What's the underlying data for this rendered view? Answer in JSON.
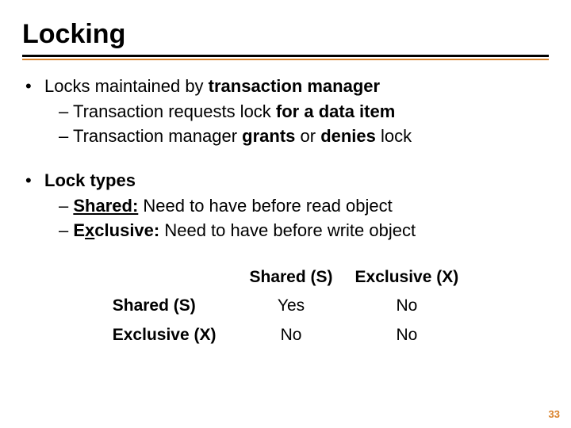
{
  "title": "Locking",
  "bullets": {
    "b1": {
      "lead": "Locks maintained by ",
      "strong": "transaction manager"
    },
    "b1s1": {
      "pre": "– Transaction requests lock ",
      "strong": "for a data item"
    },
    "b1s2": {
      "pre": "– Transaction manager ",
      "g": "grants",
      "mid": " or ",
      "d": "denies",
      "post": " lock"
    },
    "b2": {
      "strong": "Lock types"
    },
    "b2s1": {
      "dash": "– ",
      "u": "Shared:",
      "post": " Need to have before read object"
    },
    "b2s2": {
      "dash": "– ",
      "ulead": "E",
      "uletter": "x",
      "utail": "clusive:",
      "post": " Need to have before write object"
    }
  },
  "table": {
    "col1": "Shared (S)",
    "col2": "Exclusive (X)",
    "row1": "Shared (S)",
    "row2": "Exclusive (X)",
    "c11": "Yes",
    "c12": "No",
    "c21": "No",
    "c22": "No"
  },
  "page": "33",
  "colors": {
    "accent": "#d9822b"
  }
}
